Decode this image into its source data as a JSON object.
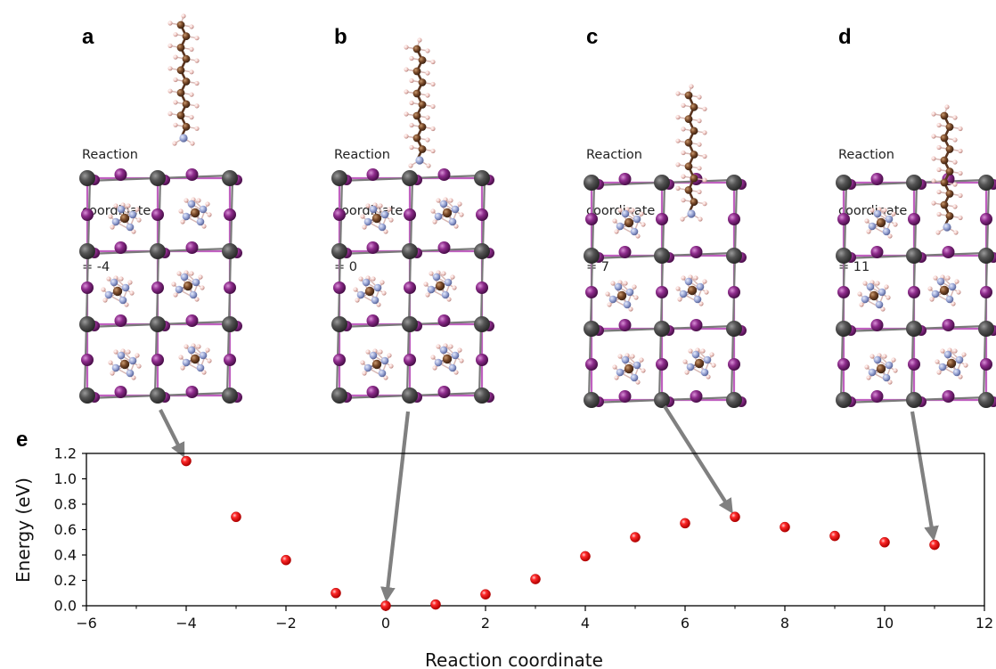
{
  "panels": [
    {
      "letter": "a",
      "line1": "Reaction",
      "line2": "coordinate",
      "line3": "= -4",
      "x": -4
    },
    {
      "letter": "b",
      "line1": "Reaction",
      "line2": "coordinate",
      "line3": "= 0",
      "x": 0
    },
    {
      "letter": "c",
      "line1": "Reaction",
      "line2": "coordinate",
      "line3": "= 7",
      "x": 7
    },
    {
      "letter": "d",
      "line1": "Reaction",
      "line2": "coordinate",
      "line3": "= 11",
      "x": 11
    }
  ],
  "chart_label": "e",
  "colors": {
    "point": "#ff1a1a",
    "arrow": "#808080",
    "iodine": "#8e2c8c",
    "lead": "#555555",
    "carbon": "#7a4a2a",
    "nitrogen": "#9aa6d6",
    "hydrogen": "#f2c9c4",
    "bond": "#c060c0"
  },
  "chart_data": {
    "type": "scatter",
    "xlabel": "Reaction coordinate",
    "ylabel": "Energy (eV)",
    "xlim": [
      -6,
      12
    ],
    "ylim": [
      0.0,
      1.2
    ],
    "xticks": [
      "−6",
      "−4",
      "−2",
      "0",
      "2",
      "4",
      "6",
      "8",
      "10",
      "12"
    ],
    "yticks": [
      "0.0",
      "0.2",
      "0.4",
      "0.6",
      "0.8",
      "1.0",
      "1.2"
    ],
    "points": [
      {
        "x": -4,
        "y": 1.14
      },
      {
        "x": -3,
        "y": 0.7
      },
      {
        "x": -2,
        "y": 0.36
      },
      {
        "x": -1,
        "y": 0.1
      },
      {
        "x": 0,
        "y": 0.0
      },
      {
        "x": 1,
        "y": 0.01
      },
      {
        "x": 2,
        "y": 0.09
      },
      {
        "x": 3,
        "y": 0.21
      },
      {
        "x": 4,
        "y": 0.39
      },
      {
        "x": 5,
        "y": 0.54
      },
      {
        "x": 6,
        "y": 0.65
      },
      {
        "x": 7,
        "y": 0.7
      },
      {
        "x": 8,
        "y": 0.62
      },
      {
        "x": 9,
        "y": 0.55
      },
      {
        "x": 10,
        "y": 0.5
      },
      {
        "x": 11,
        "y": 0.48
      }
    ]
  }
}
